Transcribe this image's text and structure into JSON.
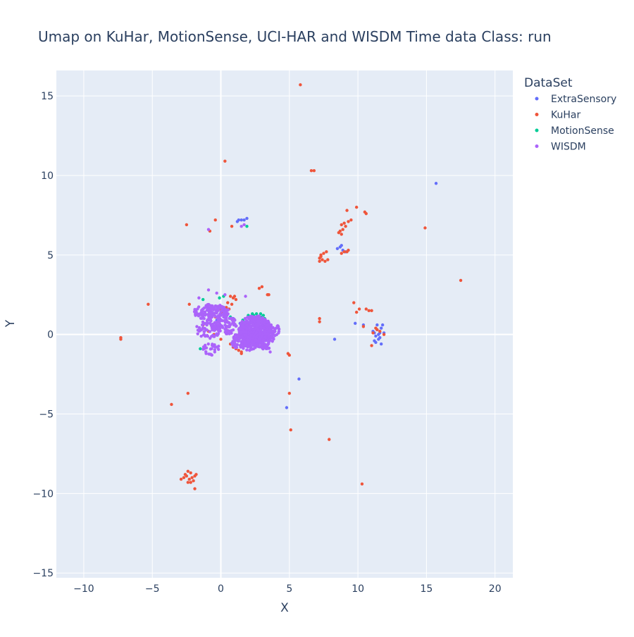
{
  "chart_data": {
    "type": "scatter",
    "title": "Umap on KuHar, MotionSense, UCI-HAR and WISDM   Time data   Class: run",
    "xlabel": "X",
    "ylabel": "Y",
    "xlim": [
      -12,
      21.3
    ],
    "ylim": [
      -15.3,
      16.6
    ],
    "x_ticks": [
      -10,
      -5,
      0,
      5,
      10,
      15,
      20
    ],
    "y_ticks": [
      -15,
      -10,
      -5,
      0,
      5,
      10,
      15
    ],
    "grid": true,
    "legend_title": "DataSet",
    "legend_position": "top-right",
    "series": [
      {
        "name": "ExtraSensory",
        "color": "#636efa",
        "points": [
          [
            15.7,
            9.5
          ],
          [
            1.3,
            7.2
          ],
          [
            1.5,
            7.2
          ],
          [
            1.7,
            7.2
          ],
          [
            1.9,
            7.3
          ],
          [
            1.2,
            7.1
          ],
          [
            8.5,
            5.4
          ],
          [
            8.7,
            5.5
          ],
          [
            8.9,
            5.3
          ],
          [
            9.1,
            5.2
          ],
          [
            8.8,
            5.6
          ],
          [
            9.8,
            0.7
          ],
          [
            10.4,
            0.6
          ],
          [
            8.3,
            -0.3
          ],
          [
            5.7,
            -2.8
          ],
          [
            4.8,
            -4.6
          ],
          [
            11.2,
            0.1
          ],
          [
            11.3,
            -0.1
          ],
          [
            11.5,
            0.0
          ],
          [
            11.6,
            -0.2
          ],
          [
            11.4,
            0.3
          ],
          [
            11.7,
            0.4
          ],
          [
            11.5,
            -0.3
          ],
          [
            11.2,
            -0.4
          ],
          [
            11.4,
            0.6
          ],
          [
            11.8,
            0.6
          ],
          [
            11.3,
            -0.5
          ],
          [
            11.6,
            0.1
          ],
          [
            11.7,
            -0.6
          ],
          [
            11.1,
            0.2
          ],
          [
            11.9,
            0.1
          ],
          [
            0.4,
            0.8
          ],
          [
            -0.3,
            0.9
          ],
          [
            0.9,
            1.0
          ],
          [
            1.4,
            0.7
          ],
          [
            -0.6,
            0.5
          ]
        ]
      },
      {
        "name": "KuHar",
        "color": "#ef553b",
        "points": [
          [
            5.8,
            15.7
          ],
          [
            0.3,
            10.9
          ],
          [
            6.6,
            10.3
          ],
          [
            6.8,
            10.3
          ],
          [
            -0.4,
            7.2
          ],
          [
            -2.5,
            6.9
          ],
          [
            0.8,
            6.8
          ],
          [
            -0.8,
            6.5
          ],
          [
            14.9,
            6.7
          ],
          [
            17.5,
            3.4
          ],
          [
            9.9,
            8.0
          ],
          [
            9.2,
            7.8
          ],
          [
            10.5,
            7.7
          ],
          [
            10.6,
            7.6
          ],
          [
            9.5,
            7.2
          ],
          [
            9.3,
            7.1
          ],
          [
            9.0,
            7.0
          ],
          [
            8.8,
            6.9
          ],
          [
            9.1,
            6.8
          ],
          [
            8.9,
            6.6
          ],
          [
            8.7,
            6.5
          ],
          [
            8.6,
            6.4
          ],
          [
            8.8,
            6.3
          ],
          [
            7.3,
            5.0
          ],
          [
            7.5,
            5.1
          ],
          [
            7.7,
            5.2
          ],
          [
            7.2,
            4.8
          ],
          [
            7.4,
            4.7
          ],
          [
            7.6,
            4.6
          ],
          [
            7.8,
            4.7
          ],
          [
            7.2,
            4.6
          ],
          [
            7.3,
            4.9
          ],
          [
            9.0,
            5.2
          ],
          [
            9.2,
            5.2
          ],
          [
            8.8,
            5.1
          ],
          [
            9.3,
            5.3
          ],
          [
            -5.3,
            1.9
          ],
          [
            -7.3,
            -0.2
          ],
          [
            -7.3,
            -0.3
          ],
          [
            7.2,
            1.0
          ],
          [
            7.2,
            0.8
          ],
          [
            9.7,
            2.0
          ],
          [
            10.1,
            1.6
          ],
          [
            10.6,
            1.6
          ],
          [
            10.8,
            1.5
          ],
          [
            11.0,
            1.5
          ],
          [
            9.9,
            1.4
          ],
          [
            10.4,
            0.5
          ],
          [
            11.1,
            0.1
          ],
          [
            11.4,
            0.3
          ],
          [
            11.6,
            0.2
          ],
          [
            11.0,
            -0.7
          ],
          [
            11.9,
            0.0
          ],
          [
            11.3,
            0.4
          ],
          [
            4.9,
            -1.2
          ],
          [
            5.0,
            -1.3
          ],
          [
            5.0,
            -3.7
          ],
          [
            5.1,
            -6.0
          ],
          [
            7.9,
            -6.6
          ],
          [
            10.3,
            -9.4
          ],
          [
            -2.4,
            -3.7
          ],
          [
            -3.6,
            -4.4
          ],
          [
            -2.4,
            -8.6
          ],
          [
            -2.2,
            -8.7
          ],
          [
            -2.5,
            -8.9
          ],
          [
            -2.1,
            -9.0
          ],
          [
            -2.3,
            -9.1
          ],
          [
            -1.9,
            -8.9
          ],
          [
            -2.7,
            -9.0
          ],
          [
            -2.2,
            -9.3
          ],
          [
            -2.9,
            -9.1
          ],
          [
            -1.8,
            -8.8
          ],
          [
            -2.4,
            -9.3
          ],
          [
            -2.0,
            -9.2
          ],
          [
            -1.9,
            -9.7
          ],
          [
            -2.6,
            -8.8
          ],
          [
            0.7,
            2.4
          ],
          [
            0.9,
            2.3
          ],
          [
            1.1,
            2.2
          ],
          [
            0.5,
            2.0
          ],
          [
            0.8,
            1.9
          ],
          [
            0.4,
            1.7
          ],
          [
            0.2,
            1.5
          ],
          [
            1.0,
            2.4
          ],
          [
            0.6,
            1.6
          ],
          [
            0.3,
            1.2
          ],
          [
            0.9,
            -0.8
          ],
          [
            1.1,
            -0.9
          ],
          [
            1.3,
            -1.0
          ],
          [
            1.5,
            -1.1
          ],
          [
            0.7,
            -0.6
          ],
          [
            -0.2,
            0.3
          ],
          [
            -0.5,
            0.0
          ],
          [
            -0.9,
            0.2
          ],
          [
            -1.3,
            0.6
          ],
          [
            -2.3,
            1.9
          ],
          [
            2.8,
            2.9
          ],
          [
            3.0,
            3.0
          ],
          [
            3.4,
            2.5
          ],
          [
            3.5,
            2.5
          ],
          [
            0.0,
            -0.3
          ],
          [
            -0.1,
            1.6
          ],
          [
            0.1,
            1.4
          ],
          [
            -0.4,
            1.1
          ],
          [
            1.5,
            -1.2
          ],
          [
            0.4,
            0.3
          ]
        ]
      },
      {
        "name": "MotionSense",
        "color": "#00cc96",
        "points": [
          [
            1.9,
            6.8
          ],
          [
            0.2,
            2.4
          ],
          [
            -0.1,
            2.3
          ],
          [
            -1.3,
            2.2
          ],
          [
            0.7,
            1.1
          ],
          [
            1.0,
            0.9
          ],
          [
            2.0,
            1.2
          ],
          [
            2.3,
            1.3
          ],
          [
            2.6,
            1.3
          ],
          [
            2.9,
            1.3
          ],
          [
            3.1,
            1.2
          ],
          [
            3.2,
            1.0
          ],
          [
            3.3,
            0.8
          ],
          [
            3.0,
            1.1
          ],
          [
            2.4,
            1.2
          ],
          [
            1.6,
            0.9
          ],
          [
            2.8,
            0.9
          ],
          [
            3.1,
            0.6
          ],
          [
            -1.5,
            -0.9
          ],
          [
            1.4,
            0.4
          ]
        ]
      },
      {
        "name": "WISDM",
        "color": "#ab63fa",
        "clusters": [
          {
            "cx": 2.5,
            "cy": 0.3,
            "rx": 1.2,
            "ry": 0.9,
            "n": 500
          },
          {
            "cx": 1.8,
            "cy": -0.4,
            "rx": 1.1,
            "ry": 0.6,
            "n": 160
          },
          {
            "cx": 3.2,
            "cy": -0.2,
            "rx": 0.7,
            "ry": 0.8,
            "n": 110
          },
          {
            "cx": -0.7,
            "cy": 1.4,
            "rx": 1.3,
            "ry": 0.5,
            "n": 140
          },
          {
            "cx": -0.9,
            "cy": 0.3,
            "rx": 0.9,
            "ry": 0.6,
            "n": 70
          },
          {
            "cx": 0.4,
            "cy": 0.6,
            "rx": 0.8,
            "ry": 0.6,
            "n": 70
          },
          {
            "cx": -0.7,
            "cy": -0.9,
            "rx": 0.6,
            "ry": 0.4,
            "n": 25
          },
          {
            "cx": 3.8,
            "cy": 0.3,
            "rx": 0.5,
            "ry": 0.4,
            "n": 30
          }
        ],
        "points": [
          [
            -0.9,
            6.6
          ],
          [
            1.5,
            6.8
          ],
          [
            1.7,
            6.9
          ],
          [
            1.8,
            2.4
          ],
          [
            -0.9,
            2.8
          ],
          [
            -0.3,
            2.6
          ],
          [
            0.3,
            2.5
          ],
          [
            -1.6,
            2.3
          ],
          [
            3.6,
            -1.1
          ],
          [
            2.1,
            -1.0
          ]
        ]
      }
    ]
  }
}
